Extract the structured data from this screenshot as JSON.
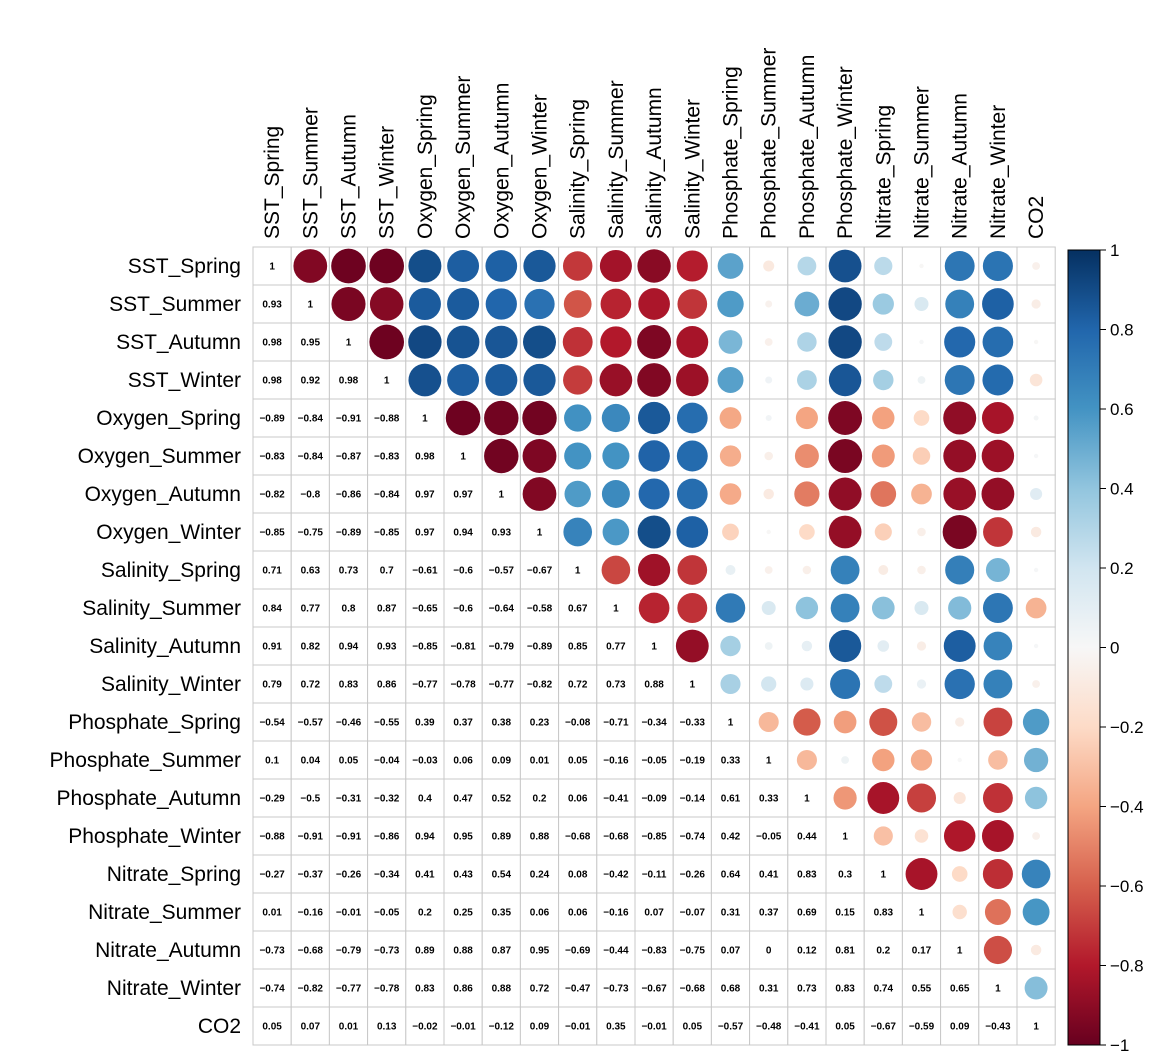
{
  "chart_data": {
    "type": "heatmap",
    "variables": [
      "SST_Spring",
      "SST_Summer",
      "SST_Autumn",
      "SST_Winter",
      "Oxygen_Spring",
      "Oxygen_Summer",
      "Oxygen_Autumn",
      "Oxygen_Winter",
      "Salinity_Spring",
      "Salinity_Summer",
      "Salinity_Autumn",
      "Salinity_Winter",
      "Phosphate_Spring",
      "Phosphate_Summer",
      "Phosphate_Autumn",
      "Phosphate_Winter",
      "Nitrate_Spring",
      "Nitrate_Summer",
      "Nitrate_Autumn",
      "Nitrate_Winter",
      "CO2"
    ],
    "lower_triangle": [
      [
        1
      ],
      [
        0.93,
        1
      ],
      [
        0.98,
        0.95,
        1
      ],
      [
        0.98,
        0.92,
        0.98,
        1
      ],
      [
        -0.89,
        -0.84,
        -0.91,
        -0.88,
        1
      ],
      [
        -0.83,
        -0.84,
        -0.87,
        -0.83,
        0.98,
        1
      ],
      [
        -0.82,
        -0.8,
        -0.86,
        -0.84,
        0.97,
        0.97,
        1
      ],
      [
        -0.85,
        -0.75,
        -0.89,
        -0.85,
        0.97,
        0.94,
        0.93,
        1
      ],
      [
        0.71,
        0.63,
        0.73,
        0.7,
        -0.61,
        -0.6,
        -0.57,
        -0.67,
        1
      ],
      [
        0.84,
        0.77,
        0.8,
        0.87,
        -0.65,
        -0.6,
        -0.64,
        -0.58,
        0.67,
        1
      ],
      [
        0.91,
        0.82,
        0.94,
        0.93,
        -0.85,
        -0.81,
        -0.79,
        -0.89,
        0.85,
        0.77,
        1
      ],
      [
        0.79,
        0.72,
        0.83,
        0.86,
        -0.77,
        -0.78,
        -0.77,
        -0.82,
        0.72,
        0.73,
        0.88,
        1
      ],
      [
        -0.54,
        -0.57,
        -0.46,
        -0.55,
        0.39,
        0.37,
        0.38,
        0.23,
        -0.08,
        -0.71,
        -0.34,
        -0.33,
        1
      ],
      [
        0.1,
        0.04,
        0.05,
        -0.04,
        -0.03,
        0.06,
        0.09,
        0.01,
        0.05,
        -0.16,
        -0.05,
        -0.19,
        0.33,
        1
      ],
      [
        -0.29,
        -0.5,
        -0.31,
        -0.32,
        0.4,
        0.47,
        0.52,
        0.2,
        0.06,
        -0.41,
        -0.09,
        -0.14,
        0.61,
        0.33,
        1
      ],
      [
        -0.88,
        -0.91,
        -0.91,
        -0.86,
        0.94,
        0.95,
        0.89,
        0.88,
        -0.68,
        -0.68,
        -0.85,
        -0.74,
        0.42,
        -0.05,
        0.44,
        1
      ],
      [
        -0.27,
        -0.37,
        -0.26,
        -0.34,
        0.41,
        0.43,
        0.54,
        0.24,
        0.08,
        -0.42,
        -0.11,
        -0.26,
        0.64,
        0.41,
        0.83,
        0.3,
        1
      ],
      [
        0.01,
        -0.16,
        -0.01,
        -0.05,
        0.2,
        0.25,
        0.35,
        0.06,
        0.06,
        -0.16,
        0.07,
        -0.07,
        0.31,
        0.37,
        0.69,
        0.15,
        0.83,
        1
      ],
      [
        -0.73,
        -0.68,
        -0.79,
        -0.73,
        0.89,
        0.88,
        0.87,
        0.95,
        -0.69,
        -0.44,
        -0.83,
        -0.75,
        0.07,
        0,
        0.12,
        0.81,
        0.2,
        0.17,
        1
      ],
      [
        -0.74,
        -0.82,
        -0.77,
        -0.78,
        0.83,
        0.86,
        0.88,
        0.72,
        -0.47,
        -0.73,
        -0.67,
        -0.68,
        0.68,
        0.31,
        0.73,
        0.83,
        0.74,
        0.55,
        0.65,
        1
      ],
      [
        0.05,
        0.07,
        0.01,
        0.13,
        -0.02,
        -0.01,
        -0.12,
        0.09,
        -0.01,
        0.35,
        -0.01,
        0.05,
        -0.57,
        -0.48,
        -0.41,
        0.05,
        -0.67,
        -0.59,
        0.09,
        -0.43,
        1
      ]
    ],
    "display": {
      "lower": "number",
      "upper": "circle",
      "diagonal": "number"
    },
    "colorbar": {
      "range": [
        -1,
        1
      ],
      "tick_labels": [
        "1",
        "0.8",
        "0.6",
        "0.4",
        "0.2",
        "0",
        "−0.2",
        "−0.4",
        "−0.6",
        "−0.8",
        "−1"
      ],
      "tick_values": [
        1,
        0.8,
        0.6,
        0.4,
        0.2,
        0,
        -0.2,
        -0.4,
        -0.6,
        -0.8,
        -1
      ],
      "colors": [
        "#67001f",
        "#b2182b",
        "#d6604d",
        "#f4a582",
        "#fddbc7",
        "#f7f7f7",
        "#d1e5f0",
        "#92c5de",
        "#4393c3",
        "#2166ac",
        "#053061"
      ]
    }
  }
}
